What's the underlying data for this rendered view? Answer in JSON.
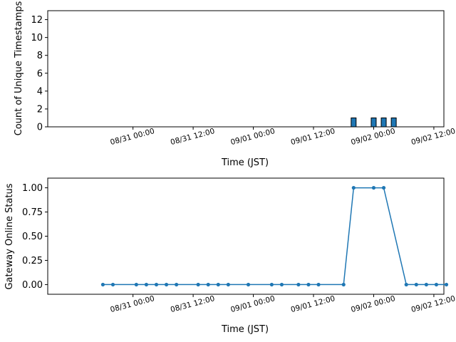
{
  "chart_data": [
    {
      "type": "bar",
      "xlabel": "Time (JST)",
      "ylabel": "Count of Unique Timestamps",
      "xlim": [
        "2025-08-30 07:00",
        "2025-09-02 14:00"
      ],
      "ylim": [
        0,
        13
      ],
      "yticks": [
        0,
        2,
        4,
        6,
        8,
        10,
        12
      ],
      "xticks": [
        {
          "t": "2025-08-31 00:00",
          "label": "08/31 00:00"
        },
        {
          "t": "2025-08-31 12:00",
          "label": "08/31 12:00"
        },
        {
          "t": "2025-09-01 00:00",
          "label": "09/01 00:00"
        },
        {
          "t": "2025-09-01 12:00",
          "label": "09/01 12:00"
        },
        {
          "t": "2025-09-02 00:00",
          "label": "09/02 00:00"
        },
        {
          "t": "2025-09-02 12:00",
          "label": "09/02 12:00"
        }
      ],
      "bars": [
        {
          "t": "2025-09-01 20:00",
          "value": 1
        },
        {
          "t": "2025-09-02 00:00",
          "value": 1
        },
        {
          "t": "2025-09-02 02:00",
          "value": 1
        },
        {
          "t": "2025-09-02 04:00",
          "value": 1
        }
      ],
      "color": "#1f77b4"
    },
    {
      "type": "line",
      "xlabel": "Time (JST)",
      "ylabel": "Gateway Online Status",
      "xlim": [
        "2025-08-30 07:00",
        "2025-09-02 14:00"
      ],
      "ylim": [
        -0.1,
        1.1
      ],
      "yticks": [
        0.0,
        0.25,
        0.5,
        0.75,
        1.0
      ],
      "xticks": [
        {
          "t": "2025-08-31 00:00",
          "label": "08/31 00:00"
        },
        {
          "t": "2025-08-31 12:00",
          "label": "08/31 12:00"
        },
        {
          "t": "2025-09-01 00:00",
          "label": "09/01 00:00"
        },
        {
          "t": "2025-09-01 12:00",
          "label": "09/01 12:00"
        },
        {
          "t": "2025-09-02 00:00",
          "label": "09/02 00:00"
        },
        {
          "t": "2025-09-02 12:00",
          "label": "09/02 12:00"
        }
      ],
      "points": [
        {
          "t": "2025-08-30 18:00",
          "value": 0
        },
        {
          "t": "2025-08-30 20:00",
          "value": 0
        },
        {
          "t": "2025-08-31 00:40",
          "value": 0
        },
        {
          "t": "2025-08-31 02:40",
          "value": 0
        },
        {
          "t": "2025-08-31 04:40",
          "value": 0
        },
        {
          "t": "2025-08-31 06:40",
          "value": 0
        },
        {
          "t": "2025-08-31 08:40",
          "value": 0
        },
        {
          "t": "2025-08-31 13:00",
          "value": 0
        },
        {
          "t": "2025-08-31 15:00",
          "value": 0
        },
        {
          "t": "2025-08-31 17:00",
          "value": 0
        },
        {
          "t": "2025-08-31 19:00",
          "value": 0
        },
        {
          "t": "2025-08-31 23:00",
          "value": 0
        },
        {
          "t": "2025-09-01 03:40",
          "value": 0
        },
        {
          "t": "2025-09-01 05:40",
          "value": 0
        },
        {
          "t": "2025-09-01 09:00",
          "value": 0
        },
        {
          "t": "2025-09-01 11:00",
          "value": 0
        },
        {
          "t": "2025-09-01 13:00",
          "value": 0
        },
        {
          "t": "2025-09-01 18:00",
          "value": 0
        },
        {
          "t": "2025-09-01 20:00",
          "value": 1
        },
        {
          "t": "2025-09-02 00:00",
          "value": 1
        },
        {
          "t": "2025-09-02 02:00",
          "value": 1
        },
        {
          "t": "2025-09-02 06:30",
          "value": 0
        },
        {
          "t": "2025-09-02 08:30",
          "value": 0
        },
        {
          "t": "2025-09-02 10:30",
          "value": 0
        },
        {
          "t": "2025-09-02 12:30",
          "value": 0
        },
        {
          "t": "2025-09-02 14:30",
          "value": 0
        }
      ],
      "color": "#1f77b4"
    }
  ]
}
